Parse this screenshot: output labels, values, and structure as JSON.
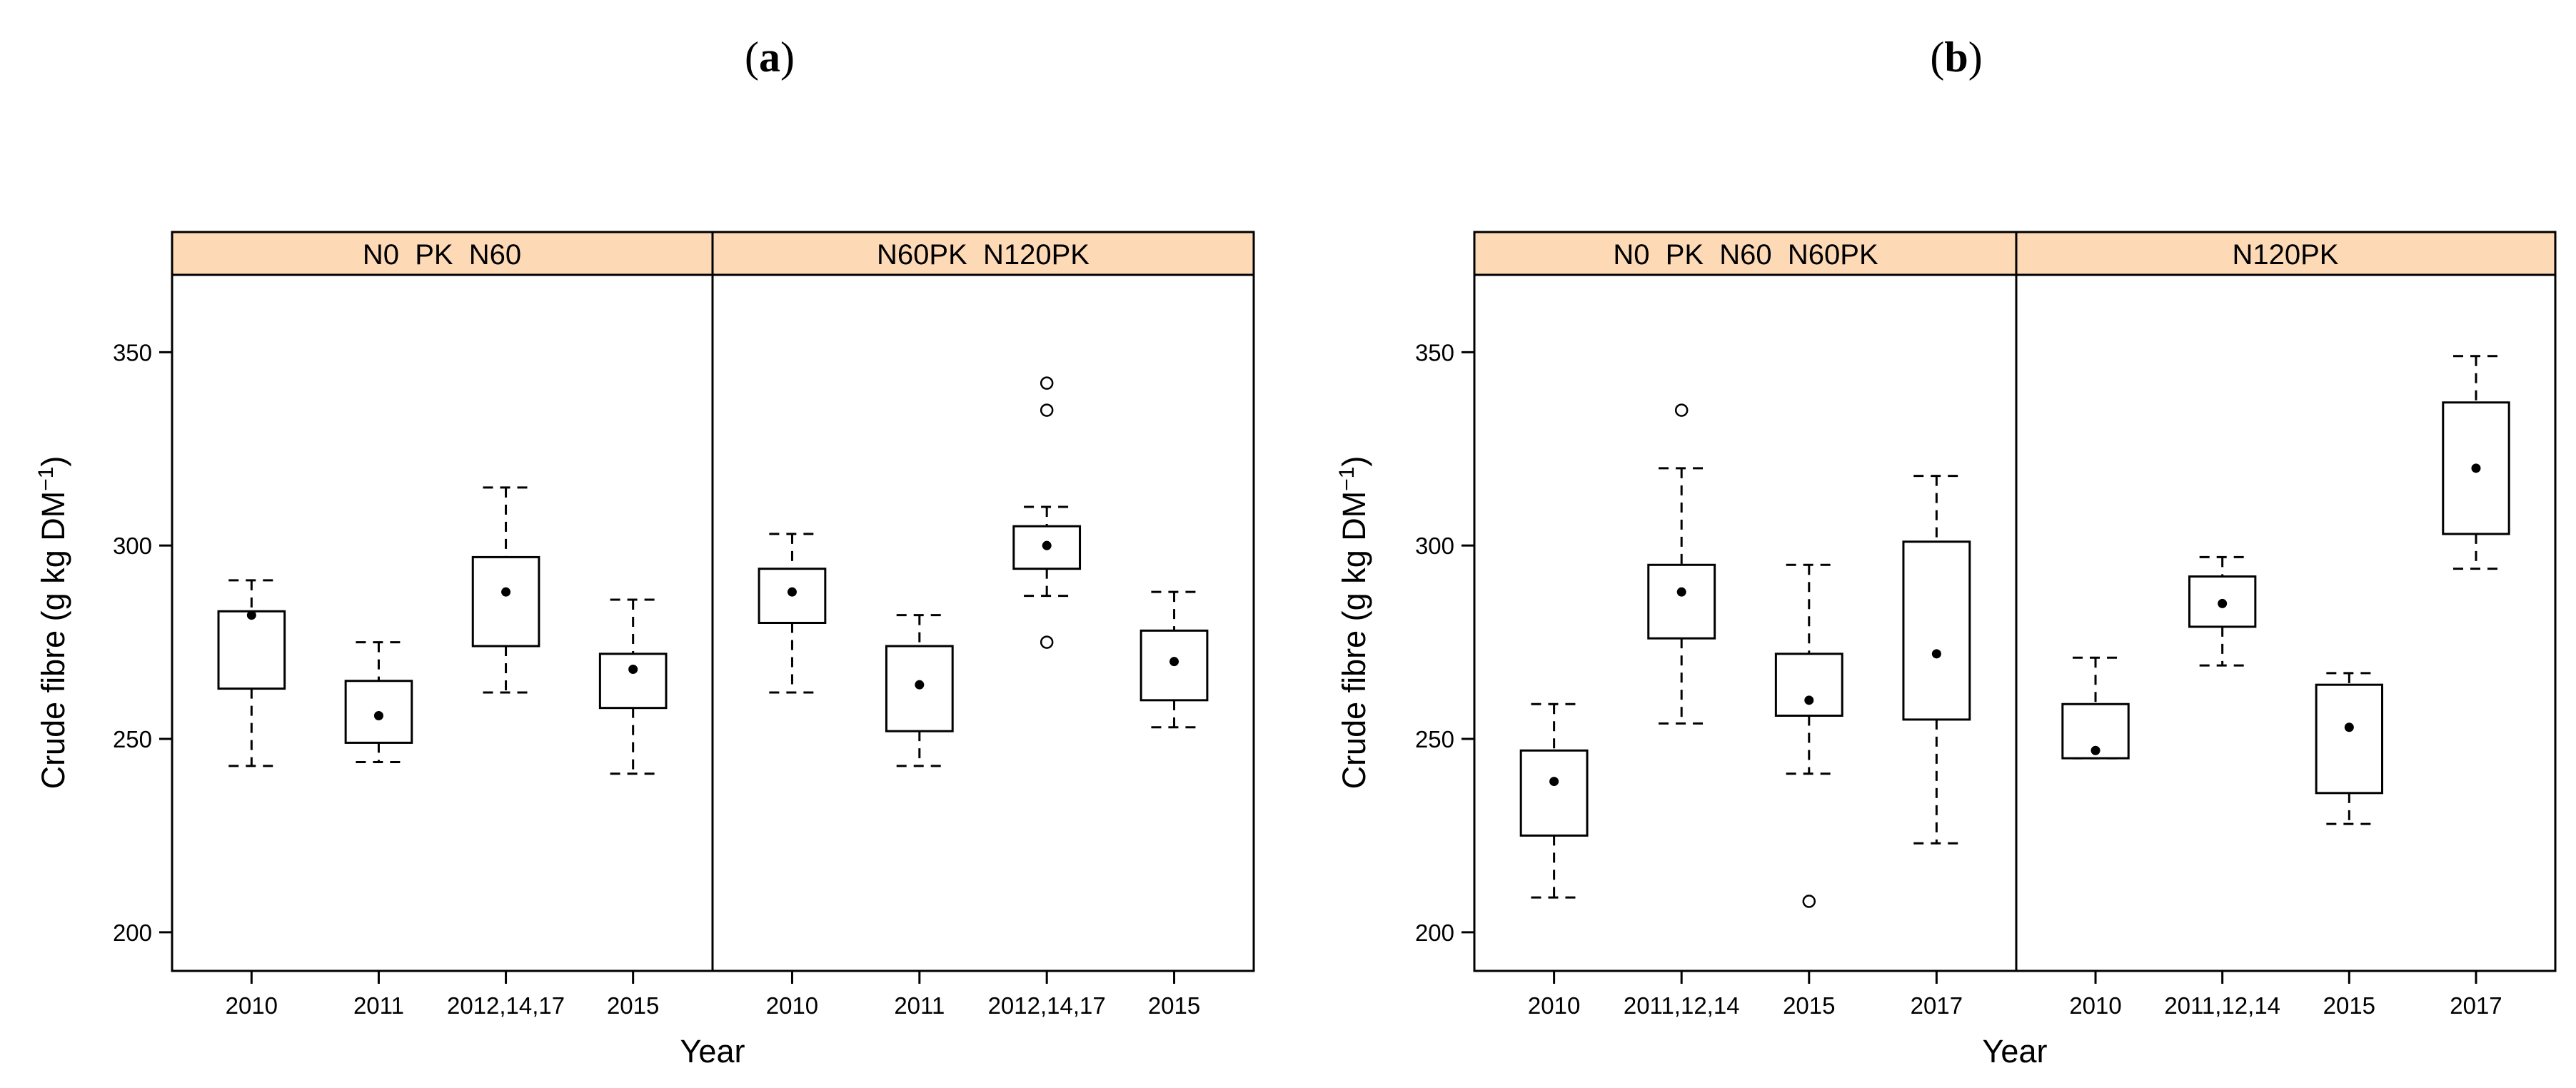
{
  "figure": {
    "panel_a_letter": "a",
    "panel_b_letter": "b",
    "strip_bg": "#fdd9b5"
  },
  "chart_data": [
    {
      "type": "box",
      "panel": "(a)",
      "xlabel": "Year",
      "ylabel": "Crude fibre (g kg DM",
      "ylabel_sup": "−1",
      "ylabel_close": ")",
      "ylim": [
        190,
        370
      ],
      "yticks": [
        "200",
        "250",
        "300",
        "350"
      ],
      "ytick_values": [
        200,
        250,
        300,
        350
      ],
      "facets": [
        {
          "label": "N0  PK  N60",
          "categories": [
            "2010",
            "2011",
            "2012,14,17",
            "2015"
          ],
          "boxes": [
            {
              "min": 243,
              "q1": 263,
              "median": 283,
              "q3": 283,
              "max": 291,
              "mean": 282,
              "outliers": []
            },
            {
              "min": 244,
              "q1": 249,
              "median": 265,
              "q3": 265,
              "max": 275,
              "mean": 256,
              "outliers": []
            },
            {
              "min": 262,
              "q1": 274,
              "median": 297,
              "q3": 297,
              "max": 315,
              "mean": 288,
              "outliers": []
            },
            {
              "min": 241,
              "q1": 258,
              "median": 272,
              "q3": 272,
              "max": 286,
              "mean": 268,
              "outliers": []
            }
          ]
        },
        {
          "label": "N60PK  N120PK",
          "categories": [
            "2010",
            "2011",
            "2012,14,17",
            "2015"
          ],
          "boxes": [
            {
              "min": 262,
              "q1": 280,
              "median": 294,
              "q3": 294,
              "max": 303,
              "mean": 288,
              "outliers": []
            },
            {
              "min": 243,
              "q1": 252,
              "median": 274,
              "q3": 274,
              "max": 282,
              "mean": 264,
              "outliers": []
            },
            {
              "min": 287,
              "q1": 294,
              "median": 305,
              "q3": 305,
              "max": 310,
              "mean": 300,
              "outliers": [
                275,
                335,
                342
              ]
            },
            {
              "min": 253,
              "q1": 260,
              "median": 278,
              "q3": 278,
              "max": 288,
              "mean": 270,
              "outliers": []
            }
          ]
        }
      ]
    },
    {
      "type": "box",
      "panel": "(b)",
      "xlabel": "Year",
      "ylabel": "Crude fibre (g kg DM",
      "ylabel_sup": "−1",
      "ylabel_close": ")",
      "ylim": [
        190,
        370
      ],
      "yticks": [
        "200",
        "250",
        "300",
        "350"
      ],
      "ytick_values": [
        200,
        250,
        300,
        350
      ],
      "facets": [
        {
          "label": "N0  PK  N60  N60PK",
          "categories": [
            "2010",
            "2011,12,14",
            "2015",
            "2017"
          ],
          "boxes": [
            {
              "min": 209,
              "q1": 225,
              "median": 247,
              "q3": 247,
              "max": 259,
              "mean": 239,
              "outliers": []
            },
            {
              "min": 254,
              "q1": 276,
              "median": 295,
              "q3": 295,
              "max": 320,
              "mean": 288,
              "outliers": [
                335
              ]
            },
            {
              "min": 241,
              "q1": 256,
              "median": 272,
              "q3": 272,
              "max": 295,
              "mean": 260,
              "outliers": [
                208
              ]
            },
            {
              "min": 223,
              "q1": 255,
              "median": 301,
              "q3": 301,
              "max": 318,
              "mean": 272,
              "outliers": []
            }
          ]
        },
        {
          "label": "N120PK",
          "categories": [
            "2010",
            "2011,12,14",
            "2015",
            "2017"
          ],
          "boxes": [
            {
              "min": 245,
              "q1": 245,
              "median": 246,
              "q3": 259,
              "max": 271,
              "mean": 247,
              "outliers": []
            },
            {
              "min": 269,
              "q1": 279,
              "median": 292,
              "q3": 292,
              "max": 297,
              "mean": 285,
              "outliers": []
            },
            {
              "min": 228,
              "q1": 236,
              "median": 264,
              "q3": 264,
              "max": 267,
              "mean": 253,
              "outliers": []
            },
            {
              "min": 294,
              "q1": 303,
              "median": 337,
              "q3": 337,
              "max": 349,
              "mean": 320,
              "outliers": []
            }
          ]
        }
      ]
    }
  ]
}
